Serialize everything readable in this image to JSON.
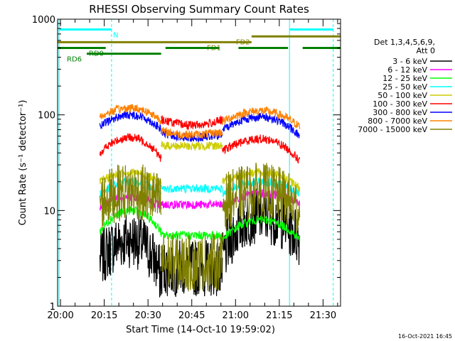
{
  "chart_data": {
    "type": "line",
    "title": "RHESSI Observing Summary Count Rates",
    "xlabel": "Start Time (14-Oct-10 19:59:02)",
    "ylabel": "Count Rate (s⁻¹ detector⁻¹)",
    "timestamp": "16-Oct-2021 16:45",
    "y_scale": "log",
    "ylim": [
      1,
      1000
    ],
    "xlim_minutes": [
      -1,
      96
    ],
    "y_ticks": [
      {
        "value": 1,
        "label": "1"
      },
      {
        "value": 10,
        "label": "10"
      },
      {
        "value": 100,
        "label": "100"
      },
      {
        "value": 1000,
        "label": "1000"
      }
    ],
    "x_ticks": [
      {
        "minute": 0,
        "label": "20:00"
      },
      {
        "minute": 15,
        "label": "20:15"
      },
      {
        "minute": 30,
        "label": "20:30"
      },
      {
        "minute": 45,
        "label": "20:45"
      },
      {
        "minute": 60,
        "label": "21:00"
      },
      {
        "minute": 75,
        "label": "21:15"
      },
      {
        "minute": 90,
        "label": "21:30"
      }
    ],
    "legend_header": [
      "Det 1,3,4,5,6,9,",
      "Att 0"
    ],
    "legend_position": "right",
    "data_windows_minutes": [
      [
        13.5,
        34.5
      ],
      [
        34.5,
        55.5
      ],
      [
        55.5,
        82
      ]
    ],
    "night_markers_minutes": [
      -0.5,
      78.5
    ],
    "saa_markers_minutes": [
      17.5,
      93.5
    ],
    "flag_bars": [
      {
        "label": "N",
        "color": "#00ffff",
        "segments": [
          [
            -0.5,
            17.5
          ],
          [
            78.5,
            93.5
          ]
        ],
        "level": 780
      },
      {
        "label": "FD1",
        "color": "#808000",
        "segments": [
          [
            -3,
            65.5
          ]
        ],
        "level": 575
      },
      {
        "label": "FD2",
        "color": "#808000",
        "segments": [
          [
            65.5,
            96
          ]
        ],
        "level": 660
      },
      {
        "label": "RD0",
        "color": "#008000",
        "segments": [
          [
            -3,
            15.5
          ],
          [
            36,
            54.5
          ],
          [
            61,
            78
          ],
          [
            83,
            96
          ]
        ],
        "level": 500
      },
      {
        "label": "RD6",
        "color": "#008000",
        "segments": [
          [
            9,
            34.5
          ]
        ],
        "level": 435
      }
    ],
    "series": [
      {
        "name": "3 - 6 keV",
        "color": "#000000",
        "values_by_window": [
          [
            3,
            5,
            2
          ],
          [
            2.5,
            2.5,
            2.5
          ],
          [
            3,
            9,
            5
          ]
        ]
      },
      {
        "name": "6 - 12 keV",
        "color": "#ff00ff",
        "values_by_window": [
          [
            11,
            14,
            11
          ],
          [
            11.5,
            11.5,
            11.5
          ],
          [
            11,
            15,
            12
          ]
        ]
      },
      {
        "name": "12 - 25 keV",
        "color": "#00ff00",
        "values_by_window": [
          [
            6,
            10,
            6
          ],
          [
            5.5,
            5.5,
            5.5
          ],
          [
            5,
            8,
            5
          ]
        ]
      },
      {
        "name": "25 - 50 keV",
        "color": "#00ffff",
        "values_by_window": [
          [
            15,
            20,
            15
          ],
          [
            17,
            17,
            17
          ],
          [
            15,
            20,
            15
          ]
        ]
      },
      {
        "name": "50 - 100 keV",
        "color": "#cccc00",
        "values_by_window": [
          [
            20,
            25,
            19
          ],
          [
            48,
            47,
            48
          ],
          [
            20,
            25,
            17
          ]
        ]
      },
      {
        "name": "100 - 300 keV",
        "color": "#ff0000",
        "values_by_window": [
          [
            40,
            58,
            35
          ],
          [
            90,
            78,
            88
          ],
          [
            42,
            56,
            33
          ]
        ]
      },
      {
        "name": "300 - 800 keV",
        "color": "#0000ff",
        "values_by_window": [
          [
            75,
            100,
            70
          ],
          [
            65,
            58,
            62
          ],
          [
            70,
            95,
            60
          ]
        ]
      },
      {
        "name": "800 - 7000 keV",
        "color": "#ff8000",
        "values_by_window": [
          [
            95,
            118,
            88
          ],
          [
            68,
            62,
            66
          ],
          [
            85,
            110,
            75
          ]
        ]
      },
      {
        "name": "7000 - 15000 keV",
        "color": "#808000",
        "values_by_window": [
          [
            12,
            16,
            12
          ],
          [
            3,
            2.8,
            3
          ],
          [
            12,
            16,
            10
          ]
        ]
      }
    ]
  }
}
